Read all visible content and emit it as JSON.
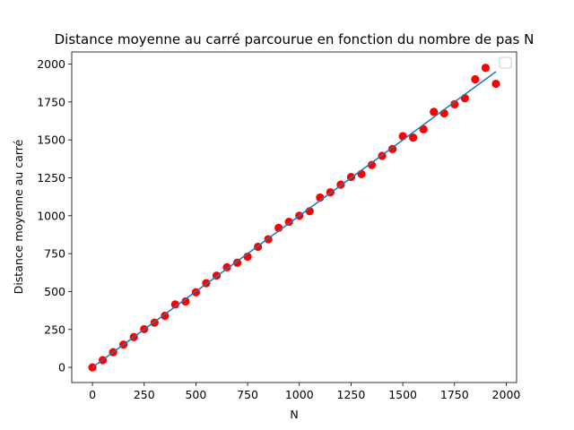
{
  "chart_data": {
    "type": "scatter",
    "title": "Distance moyenne au carré parcourue en fonction du nombre de pas N",
    "xlabel": "N",
    "ylabel": "Distance moyenne au carré",
    "xlim": [
      -100,
      2050
    ],
    "ylim": [
      -100,
      2080
    ],
    "xticks": [
      0,
      250,
      500,
      750,
      1000,
      1250,
      1500,
      1750,
      2000
    ],
    "yticks": [
      0,
      250,
      500,
      750,
      1000,
      1250,
      1500,
      1750,
      2000
    ],
    "grid": false,
    "legend": "top-right",
    "series": [
      {
        "kind": "points",
        "color": "#ff0000",
        "x": [
          0,
          50,
          100,
          150,
          200,
          250,
          300,
          350,
          400,
          450,
          500,
          550,
          600,
          650,
          700,
          750,
          800,
          850,
          900,
          950,
          1000,
          1050,
          1100,
          1150,
          1200,
          1250,
          1300,
          1350,
          1400,
          1450,
          1500,
          1550,
          1600,
          1650,
          1700,
          1750,
          1800,
          1850,
          1900,
          1950
        ],
        "y": [
          0,
          48,
          100,
          150,
          200,
          252,
          295,
          340,
          415,
          435,
          495,
          555,
          605,
          660,
          690,
          730,
          795,
          845,
          920,
          960,
          1000,
          1030,
          1120,
          1155,
          1205,
          1255,
          1275,
          1335,
          1395,
          1440,
          1525,
          1515,
          1570,
          1685,
          1675,
          1735,
          1775,
          1900,
          1975,
          1870
        ]
      },
      {
        "kind": "line",
        "color": "#1f77b4",
        "x": [
          0,
          1950
        ],
        "y": [
          0,
          1950
        ]
      }
    ]
  }
}
